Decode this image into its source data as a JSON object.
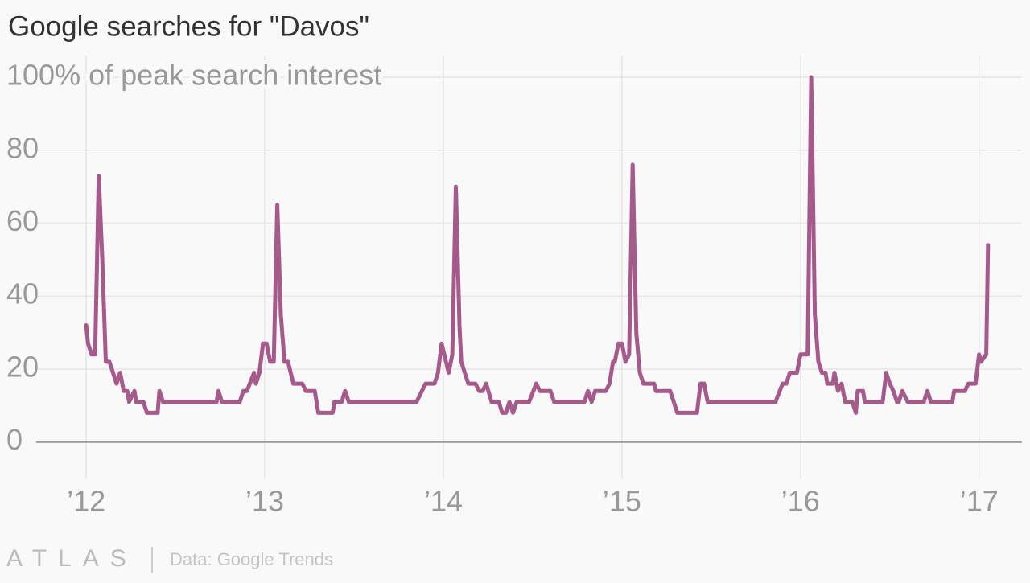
{
  "chart_data": {
    "type": "line",
    "title": "Google searches for \"Davos\"",
    "source": "Data: Google Trends",
    "logo": "ATLAS",
    "xlim": [
      2011.72,
      2017.24
    ],
    "xticks": [
      {
        "value": 2012,
        "label": "’12"
      },
      {
        "value": 2013,
        "label": "’13"
      },
      {
        "value": 2014,
        "label": "’14"
      },
      {
        "value": 2015,
        "label": "’15"
      },
      {
        "value": 2016,
        "label": "’16"
      },
      {
        "value": 2017,
        "label": "’17"
      }
    ],
    "ylim": [
      -8,
      100
    ],
    "yticks": [
      0,
      20,
      40,
      60,
      80,
      {
        "value": 100,
        "label": "100% of peak search interest"
      }
    ],
    "grid": true,
    "x": [
      2012.0,
      2012.01,
      2012.03,
      2012.05,
      2012.07,
      2012.09,
      2012.11,
      2012.13,
      2012.17,
      2012.19,
      2012.21,
      2012.23,
      2012.24,
      2012.27,
      2012.28,
      2012.32,
      2012.34,
      2012.4,
      2012.41,
      2012.43,
      2012.73,
      2012.74,
      2012.76,
      2012.86,
      2012.88,
      2012.9,
      2012.94,
      2012.95,
      2012.97,
      2012.99,
      2013.01,
      2013.03,
      2013.05,
      2013.07,
      2013.09,
      2013.11,
      2013.13,
      2013.16,
      2013.21,
      2013.23,
      2013.28,
      2013.3,
      2013.38,
      2013.39,
      2013.43,
      2013.45,
      2013.47,
      2013.85,
      2013.9,
      2013.95,
      2013.97,
      2013.99,
      2014.03,
      2014.05,
      2014.07,
      2014.09,
      2014.1,
      2014.14,
      2014.18,
      2014.2,
      2014.22,
      2014.24,
      2014.27,
      2014.31,
      2014.33,
      2014.35,
      2014.37,
      2014.39,
      2014.41,
      2014.48,
      2014.52,
      2014.54,
      2014.6,
      2014.62,
      2014.79,
      2014.81,
      2014.83,
      2014.85,
      2014.91,
      2014.93,
      2014.95,
      2014.96,
      2014.98,
      2015.0,
      2015.02,
      2015.04,
      2015.06,
      2015.08,
      2015.1,
      2015.12,
      2015.18,
      2015.19,
      2015.27,
      2015.31,
      2015.42,
      2015.44,
      2015.46,
      2015.48,
      2015.86,
      2015.9,
      2015.92,
      2015.94,
      2015.98,
      2016.0,
      2016.04,
      2016.06,
      2016.08,
      2016.1,
      2016.12,
      2016.14,
      2016.15,
      2016.18,
      2016.19,
      2016.21,
      2016.23,
      2016.25,
      2016.29,
      2016.31,
      2016.32,
      2016.35,
      2016.36,
      2016.46,
      2016.48,
      2016.5,
      2016.52,
      2016.54,
      2016.55,
      2016.57,
      2016.6,
      2016.69,
      2016.71,
      2016.73,
      2016.85,
      2016.86,
      2016.92,
      2016.94,
      2016.98,
      2017.0,
      2017.01,
      2017.04,
      2017.05
    ],
    "series": [
      {
        "name": "Davos",
        "color": "#a65a8c",
        "values": [
          32,
          27,
          24,
          24,
          73,
          50,
          22,
          22,
          16,
          19,
          14,
          14,
          11,
          14,
          11,
          11,
          8,
          8,
          14,
          11,
          11,
          14,
          11,
          11,
          14,
          14,
          19,
          16,
          19,
          27,
          27,
          22,
          22,
          65,
          35,
          22,
          22,
          16,
          16,
          14,
          14,
          8,
          8,
          11,
          11,
          14,
          11,
          11,
          16,
          16,
          19,
          27,
          19,
          24,
          70,
          32,
          22,
          16,
          16,
          14,
          14,
          16,
          11,
          11,
          8,
          8,
          11,
          8,
          11,
          11,
          16,
          14,
          14,
          11,
          11,
          14,
          11,
          14,
          14,
          16,
          22,
          22,
          27,
          27,
          22,
          24,
          76,
          30,
          19,
          16,
          16,
          14,
          14,
          8,
          8,
          16,
          16,
          11,
          11,
          16,
          16,
          19,
          19,
          24,
          24,
          100,
          35,
          22,
          19,
          19,
          16,
          16,
          19,
          14,
          16,
          11,
          11,
          8,
          14,
          14,
          11,
          11,
          19,
          16,
          14,
          11,
          11,
          14,
          11,
          11,
          14,
          11,
          11,
          14,
          14,
          16,
          16,
          24,
          22,
          24,
          54
        ]
      }
    ]
  }
}
